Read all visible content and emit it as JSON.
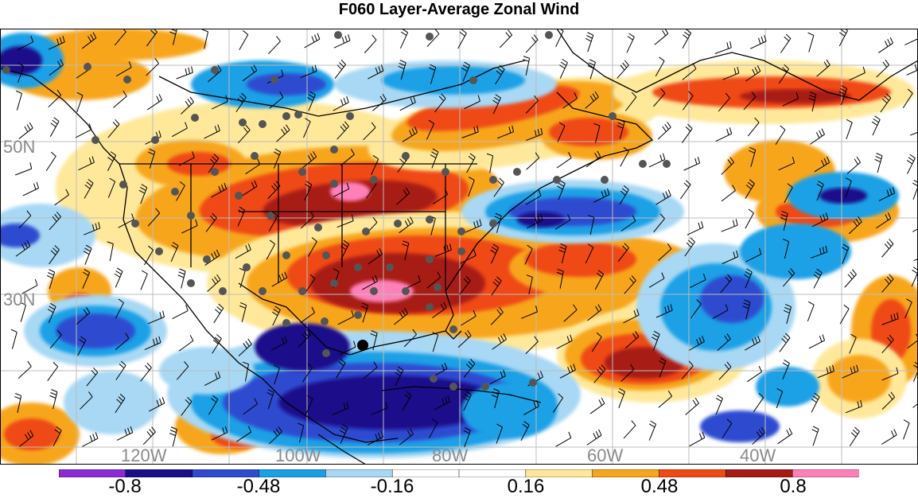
{
  "title": "F060 Layer-Average Zonal Wind",
  "lat_labels": [
    "50N",
    "30N"
  ],
  "lon_labels": [
    "120W",
    "100W",
    "80W",
    "60W",
    "40W"
  ],
  "colorbar": {
    "colors": [
      "#8c2ad6",
      "#1a0f8a",
      "#2f4bd0",
      "#1aa0e6",
      "#a8d8f4",
      "#ffffff",
      "#ffffff",
      "#ffe89a",
      "#f7a61c",
      "#ef4a14",
      "#a81a14",
      "#ff80b8"
    ],
    "labels": [
      "-0.8",
      "-0.48",
      "-0.16",
      "0.16",
      "0.48",
      "0.8"
    ]
  },
  "colors": {
    "neg_strong": "#1a0f8a",
    "neg_mid": "#2f4bd0",
    "neg_light": "#1aa0e6",
    "neg_pale": "#a8d8f4",
    "pos_pale": "#ffe89a",
    "pos_light": "#f7a61c",
    "pos_mid": "#ef4a14",
    "pos_strong": "#a81a14",
    "pos_max": "#ff80b8",
    "station_dot": "#555555",
    "coast": "#000000"
  }
}
